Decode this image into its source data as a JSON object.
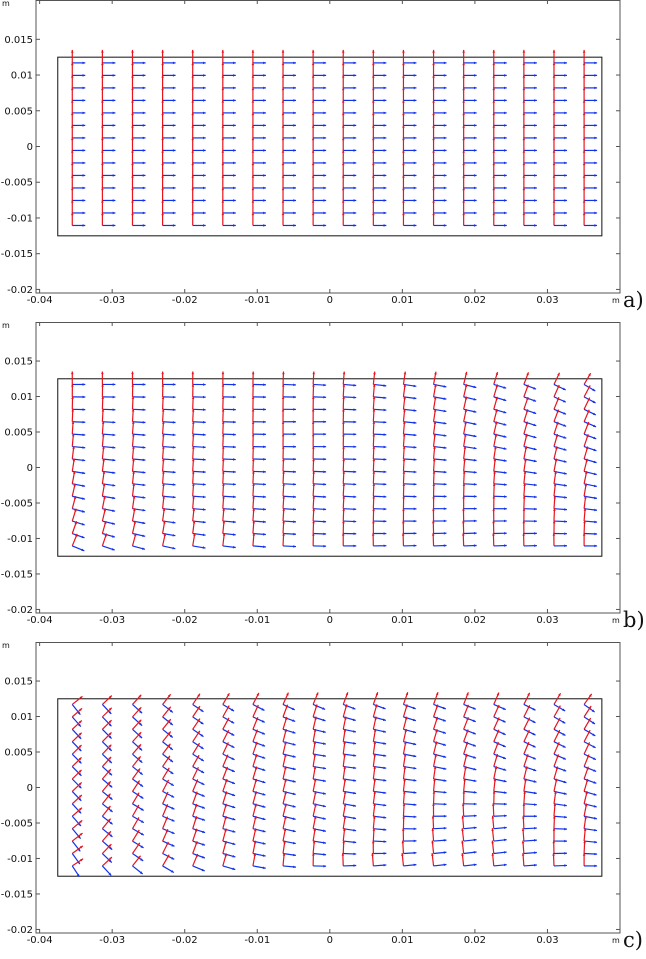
{
  "chart_data": [
    {
      "type": "quiver",
      "panel_label": "a)",
      "axis_unit": "m",
      "xlim": [
        -0.0405,
        0.04
      ],
      "ylim": [
        -0.0205,
        0.0205
      ],
      "x_ticks": [
        -0.04,
        -0.03,
        -0.02,
        -0.01,
        0,
        0.01,
        0.02,
        0.03
      ],
      "x_tick_labels": [
        "-0.04",
        "-0.03",
        "-0.02",
        "-0.01",
        "0",
        "0.01",
        "0.02",
        "0.03"
      ],
      "y_ticks": [
        0.015,
        0.01,
        0.005,
        0,
        -0.005,
        -0.01,
        -0.015,
        -0.02
      ],
      "y_tick_labels": [
        "0.015",
        "0.01",
        "0.005",
        "0",
        "-0.005",
        "-0.01",
        "-0.015",
        "-0.02"
      ],
      "domain_rectangle": {
        "xmin": -0.0375,
        "xmax": 0.0375,
        "ymin": -0.0125,
        "ymax": 0.0125
      },
      "grid": {
        "columns": 18,
        "rows": 14,
        "x_start": -0.0355,
        "x_step": 0.00415,
        "y_start": 0.0117,
        "y_step": -0.00175
      },
      "series": [
        {
          "name": "red vectors",
          "color": "#e8141c"
        },
        {
          "name": "blue vectors",
          "color": "#1232e8"
        }
      ],
      "rotation_model": {
        "tl_amp": 0,
        "tr_amp": 0,
        "bl_amp": 0,
        "mid_amp": 0
      }
    },
    {
      "type": "quiver",
      "panel_label": "b)",
      "axis_unit": "m",
      "xlim": [
        -0.0405,
        0.04
      ],
      "ylim": [
        -0.0205,
        0.0205
      ],
      "x_ticks": [
        -0.04,
        -0.03,
        -0.02,
        -0.01,
        0,
        0.01,
        0.02,
        0.03
      ],
      "x_tick_labels": [
        "-0.04",
        "-0.03",
        "-0.02",
        "-0.01",
        "0",
        "0.01",
        "0.02",
        "0.03"
      ],
      "y_ticks": [
        0.015,
        0.01,
        0.005,
        0,
        -0.005,
        -0.01,
        -0.015,
        -0.02
      ],
      "y_tick_labels": [
        "0.015",
        "0.01",
        "0.005",
        "0",
        "-0.005",
        "-0.01",
        "-0.015",
        "-0.02"
      ],
      "domain_rectangle": {
        "xmin": -0.0375,
        "xmax": 0.0375,
        "ymin": -0.0125,
        "ymax": 0.0125
      },
      "grid": {
        "columns": 18,
        "rows": 14,
        "x_start": -0.0355,
        "x_step": 0.00415,
        "y_start": 0.0117,
        "y_step": -0.00175
      },
      "series": [
        {
          "name": "red vectors",
          "color": "#e8141c"
        },
        {
          "name": "blue vectors",
          "color": "#1232e8"
        }
      ],
      "rotation_model": {
        "tl_amp": 0,
        "tr_amp": 0.55,
        "bl_amp": 0.35,
        "mid_amp": 0.15
      }
    },
    {
      "type": "quiver",
      "panel_label": "c)",
      "axis_unit": "m",
      "xlim": [
        -0.0405,
        0.04
      ],
      "ylim": [
        -0.0205,
        0.0205
      ],
      "x_ticks": [
        -0.04,
        -0.03,
        -0.02,
        -0.01,
        0,
        0.01,
        0.02,
        0.03
      ],
      "x_tick_labels": [
        "-0.04",
        "-0.03",
        "-0.02",
        "-0.01",
        "0",
        "0.01",
        "0.02",
        "0.03"
      ],
      "y_ticks": [
        0.015,
        0.01,
        0.005,
        0,
        -0.005,
        -0.01,
        -0.015,
        -0.02
      ],
      "y_tick_labels": [
        "0.015",
        "0.01",
        "0.005",
        "0",
        "-0.005",
        "-0.01",
        "-0.015",
        "-0.02"
      ],
      "domain_rectangle": {
        "xmin": -0.0375,
        "xmax": 0.0375,
        "ymin": -0.0125,
        "ymax": 0.0125
      },
      "grid": {
        "columns": 18,
        "rows": 14,
        "x_start": -0.0355,
        "x_step": 0.00415,
        "y_start": 0.0117,
        "y_step": -0.00175
      },
      "series": [
        {
          "name": "red vectors",
          "color": "#e8141c"
        },
        {
          "name": "blue vectors",
          "color": "#1232e8"
        }
      ],
      "rotation_model": {
        "tl_amp": 1.0,
        "tr_amp": 0.65,
        "bl_amp": 0.9,
        "mid_amp": 0.45
      }
    }
  ]
}
